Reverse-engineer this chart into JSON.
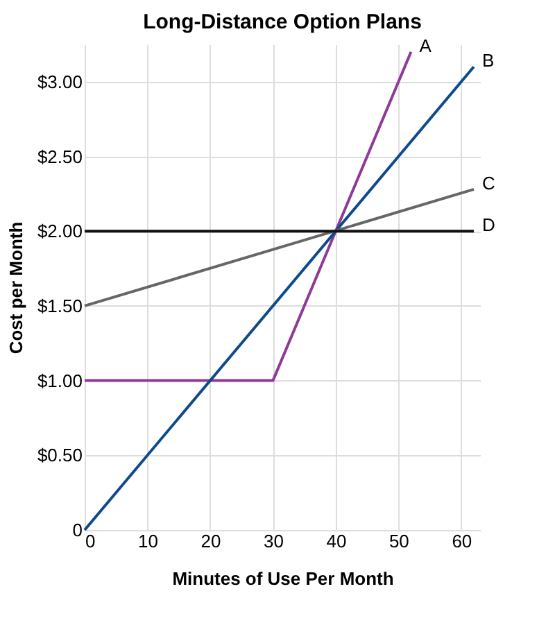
{
  "chart_data": {
    "type": "line",
    "title": "Long-Distance Option Plans",
    "xlabel": "Minutes of Use Per Month",
    "ylabel": "Cost per Month",
    "xlim": [
      0,
      63
    ],
    "ylim": [
      0,
      3.25
    ],
    "xticks": [
      0,
      10,
      20,
      30,
      40,
      50,
      60
    ],
    "yticks": [
      0,
      {
        "value": 0.5,
        "label": "$0.50"
      },
      {
        "value": 1,
        "label": "$1.00"
      },
      {
        "value": 1.5,
        "label": "$1.50"
      },
      {
        "value": 2,
        "label": "$2.00"
      },
      {
        "value": 2.5,
        "label": "$2.50"
      },
      {
        "value": 3,
        "label": "$3.00"
      }
    ],
    "grid": true,
    "marker": "none",
    "line_style": "solid",
    "series": [
      {
        "name": "A",
        "color": "#8e3a96",
        "x": [
          0,
          30,
          52
        ],
        "values": [
          1,
          1,
          3.2
        ]
      },
      {
        "name": "B",
        "color": "#0d4a8c",
        "x": [
          0,
          62
        ],
        "values": [
          0,
          3.1
        ]
      },
      {
        "name": "C",
        "color": "#666666",
        "x": [
          0,
          62
        ],
        "values": [
          1.5,
          2.28
        ]
      },
      {
        "name": "D",
        "color": "#111111",
        "x": [
          0,
          62
        ],
        "values": [
          2,
          2
        ]
      }
    ]
  }
}
